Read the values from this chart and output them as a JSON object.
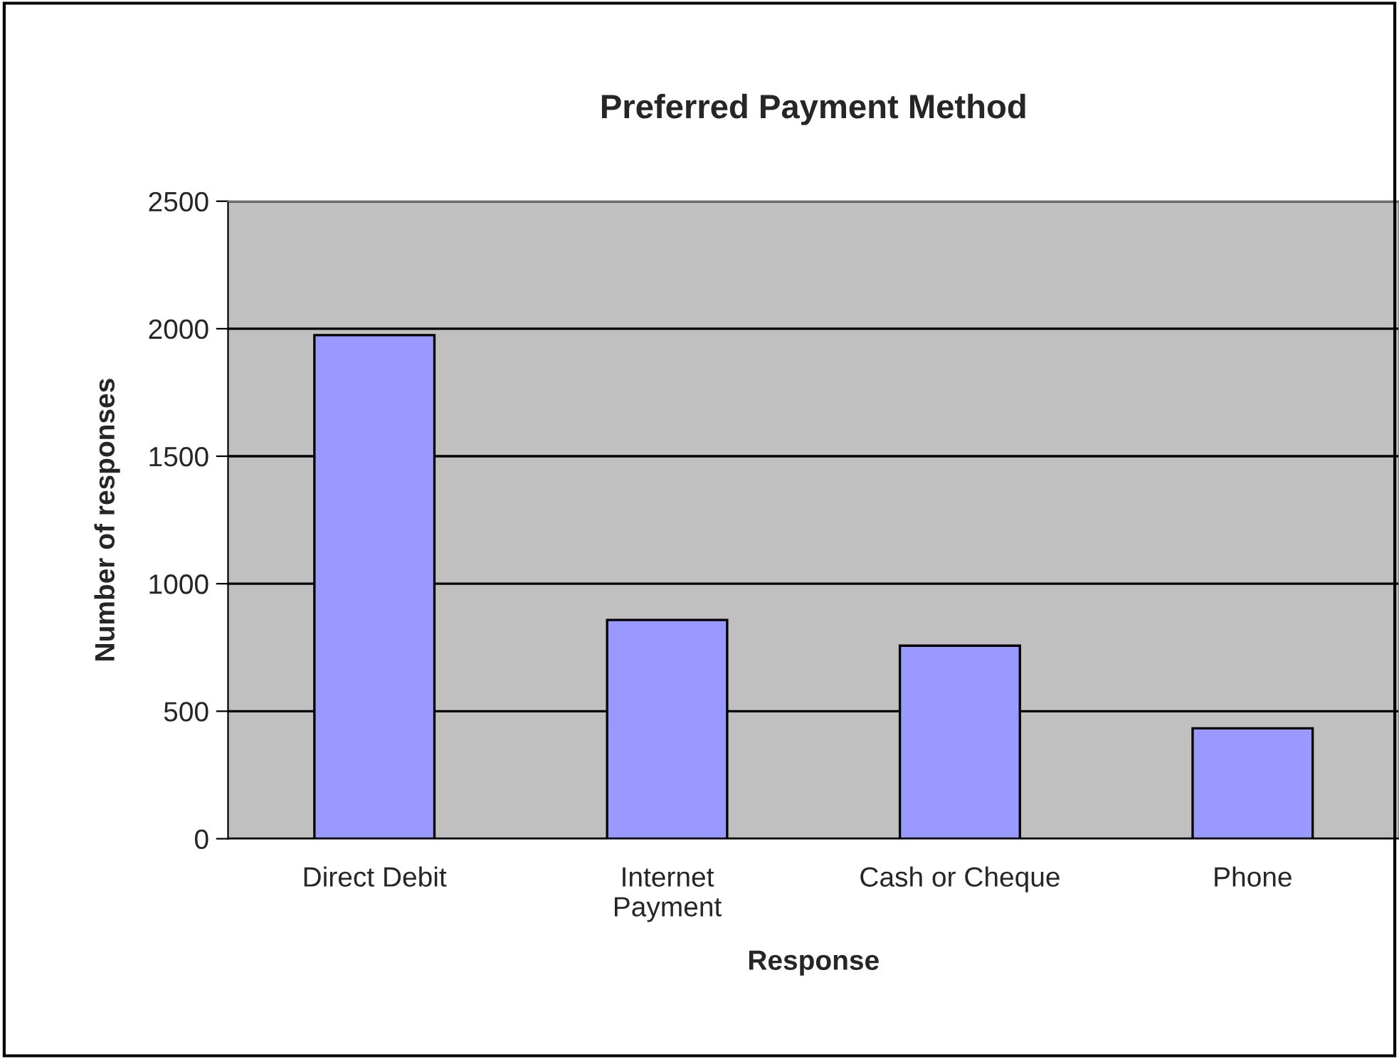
{
  "chart_data": {
    "type": "bar",
    "title": "Preferred Payment Method",
    "xlabel": "Response",
    "ylabel": "Number of responses",
    "categories": [
      "Direct Debit",
      "Internet\nPayment",
      "Cash or Cheque",
      "Phone"
    ],
    "values": [
      1975,
      858,
      757,
      433
    ],
    "color": "#9999ff",
    "ylim": [
      0,
      2500
    ],
    "yticks": [
      0,
      500,
      1000,
      1500,
      2000,
      2500
    ],
    "grid": "y"
  }
}
